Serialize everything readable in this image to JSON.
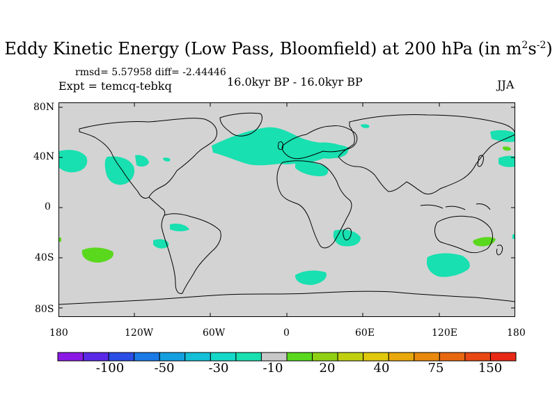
{
  "title": {
    "main": "Eddy Kinetic Energy (Low Pass, Bloomfield) at 200 hPa (in m",
    "sup1": "2",
    "mid": "s",
    "sup2": "-2",
    "end": ")"
  },
  "stats": "rmsd= 5.57958  diff= -2.44446",
  "experiment": "Expt = temcq-tebkq",
  "period": "16.0kyr BP - 16.0kyr BP",
  "season": "JJA",
  "axes": {
    "lat_labels": [
      "80N",
      "40N",
      "0",
      "40S",
      "80S"
    ],
    "lon_labels": [
      "180",
      "120W",
      "60W",
      "0",
      "60E",
      "120E",
      "180"
    ]
  },
  "colorbar": {
    "colors": [
      "#8c18e6",
      "#5a2ae6",
      "#2a4de6",
      "#1a7ae6",
      "#14a0e0",
      "#14c0d8",
      "#14d8c8",
      "#18e0b0",
      "#c8c8c8",
      "#5ad81e",
      "#90d014",
      "#c0d010",
      "#e0c80c",
      "#e8a80c",
      "#e8880c",
      "#e86810",
      "#e84814",
      "#e82814"
    ],
    "labels": [
      "-100",
      "-50",
      "-30",
      "-10",
      "20",
      "40",
      "75",
      "150"
    ]
  },
  "colors": {
    "ocean_land_fill": "#d3d3d3",
    "negative": "#18e0b0",
    "positive": "#5ad81e"
  }
}
